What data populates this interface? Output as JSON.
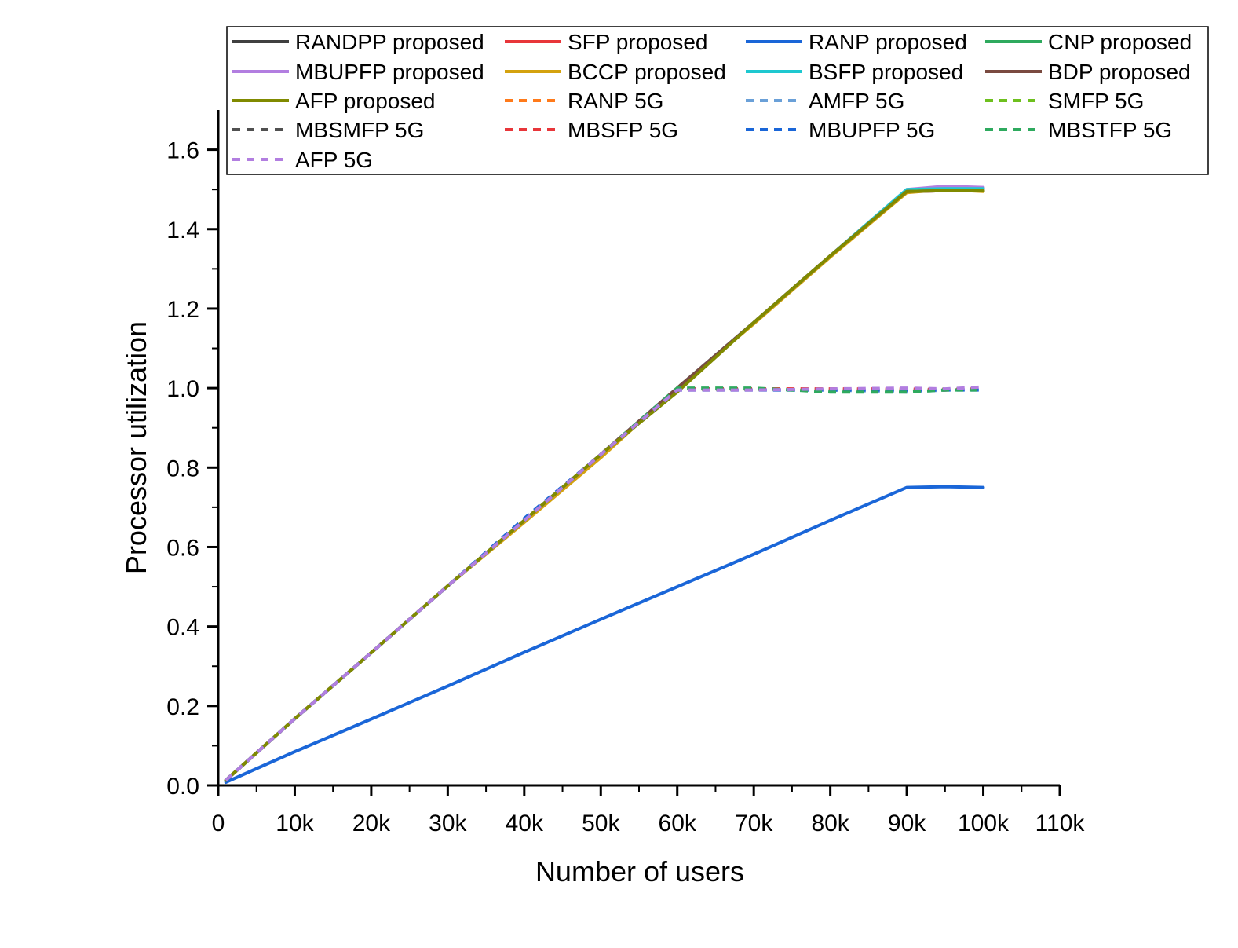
{
  "chart_data": {
    "type": "line",
    "title": "",
    "xlabel": "Number of users",
    "ylabel": "Processor utilization",
    "xlim": [
      0,
      110000
    ],
    "ylim": [
      0,
      1.7
    ],
    "x_ticks": [
      0,
      10000,
      20000,
      30000,
      40000,
      50000,
      60000,
      70000,
      80000,
      90000,
      100000,
      110000
    ],
    "x_tick_labels": [
      "0",
      "10k",
      "20k",
      "30k",
      "40k",
      "50k",
      "60k",
      "70k",
      "80k",
      "90k",
      "100k",
      "110k"
    ],
    "y_ticks": [
      0.0,
      0.2,
      0.4,
      0.6,
      0.8,
      1.0,
      1.2,
      1.4,
      1.6
    ],
    "y_tick_labels": [
      "0.0",
      "0.2",
      "0.4",
      "0.6",
      "0.8",
      "1.0",
      "1.2",
      "1.4",
      "1.6"
    ],
    "grid": false,
    "legend_position": "top-right",
    "x": [
      1000,
      10000,
      20000,
      30000,
      40000,
      50000,
      60000,
      70000,
      80000,
      90000,
      95000,
      100000
    ],
    "series": [
      {
        "name": "RANDPP proposed",
        "color": "#404040",
        "dash": "solid",
        "values": [
          0.013,
          0.168,
          0.334,
          0.502,
          0.667,
          0.833,
          1.0,
          1.165,
          1.333,
          1.495,
          1.497,
          1.497
        ]
      },
      {
        "name": "SFP proposed",
        "color": "#e8363a",
        "dash": "solid",
        "values": [
          0.013,
          0.168,
          0.334,
          0.502,
          0.667,
          0.833,
          1.0,
          1.165,
          1.333,
          1.495,
          1.497,
          1.497
        ]
      },
      {
        "name": "RANP proposed",
        "color": "#1a66d8",
        "dash": "solid",
        "values": [
          0.008,
          0.085,
          0.167,
          0.25,
          0.335,
          0.418,
          0.5,
          0.582,
          0.667,
          0.75,
          0.752,
          0.75
        ]
      },
      {
        "name": "CNP proposed",
        "color": "#2eaa5e",
        "dash": "solid",
        "values": [
          0.013,
          0.168,
          0.334,
          0.502,
          0.667,
          0.833,
          1.0,
          1.165,
          1.333,
          1.498,
          1.503,
          1.503
        ]
      },
      {
        "name": "MBUPFP proposed",
        "color": "#b27ee0",
        "dash": "solid",
        "values": [
          0.013,
          0.168,
          0.334,
          0.502,
          0.667,
          0.833,
          1.0,
          1.165,
          1.333,
          1.5,
          1.508,
          1.505
        ]
      },
      {
        "name": "BCCP proposed",
        "color": "#d4a20f",
        "dash": "solid",
        "values": [
          0.013,
          0.168,
          0.334,
          0.502,
          0.662,
          0.825,
          1.0,
          1.162,
          1.33,
          1.492,
          1.5,
          1.495
        ]
      },
      {
        "name": "BSFP proposed",
        "color": "#1ec8d0",
        "dash": "solid",
        "values": [
          0.013,
          0.168,
          0.334,
          0.502,
          0.667,
          0.833,
          1.0,
          1.165,
          1.333,
          1.5,
          1.502,
          1.502
        ]
      },
      {
        "name": "BDP proposed",
        "color": "#7a4a40",
        "dash": "solid",
        "values": [
          0.013,
          0.168,
          0.334,
          0.502,
          0.667,
          0.833,
          1.0,
          1.165,
          1.333,
          1.495,
          1.497,
          1.497
        ]
      },
      {
        "name": "AFP proposed",
        "color": "#808a00",
        "dash": "solid",
        "values": [
          0.013,
          0.168,
          0.334,
          0.502,
          0.667,
          0.833,
          0.99,
          1.165,
          1.333,
          1.495,
          1.497,
          1.497
        ]
      },
      {
        "name": "RANP 5G",
        "color": "#ff7a1a",
        "dash": "dash",
        "values": [
          0.013,
          0.168,
          0.334,
          0.502,
          0.667,
          0.833,
          0.998,
          0.998,
          0.998,
          0.995,
          0.995,
          0.998
        ]
      },
      {
        "name": "AMFP 5G",
        "color": "#6aa0d8",
        "dash": "dash",
        "values": [
          0.013,
          0.168,
          0.334,
          0.502,
          0.667,
          0.833,
          0.995,
          0.995,
          0.995,
          0.99,
          0.995,
          0.997
        ]
      },
      {
        "name": "SMFP 5G",
        "color": "#6ec01e",
        "dash": "dash",
        "values": [
          0.013,
          0.168,
          0.334,
          0.502,
          0.667,
          0.833,
          0.997,
          0.997,
          0.997,
          0.997,
          0.997,
          0.998
        ]
      },
      {
        "name": "MBSMFP 5G",
        "color": "#505050",
        "dash": "dash",
        "values": [
          0.013,
          0.168,
          0.334,
          0.502,
          0.667,
          0.833,
          0.998,
          0.998,
          0.995,
          0.995,
          0.995,
          0.998
        ]
      },
      {
        "name": "MBSFP 5G",
        "color": "#e8363a",
        "dash": "dash",
        "values": [
          0.013,
          0.168,
          0.334,
          0.502,
          0.667,
          0.833,
          0.998,
          0.998,
          0.998,
          0.998,
          0.995,
          0.998
        ]
      },
      {
        "name": "MBUPFP 5G",
        "color": "#1a66d8",
        "dash": "dash",
        "values": [
          0.013,
          0.168,
          0.334,
          0.502,
          0.672,
          0.833,
          0.995,
          0.995,
          0.995,
          0.995,
          0.995,
          0.995
        ]
      },
      {
        "name": "MBSTFP 5G",
        "color": "#2eaa5e",
        "dash": "dash",
        "values": [
          0.013,
          0.168,
          0.334,
          0.502,
          0.667,
          0.833,
          1.0,
          1.0,
          0.99,
          0.99,
          0.995,
          0.995
        ]
      },
      {
        "name": "AFP 5G",
        "color": "#b27ee0",
        "dash": "dash",
        "values": [
          0.013,
          0.168,
          0.334,
          0.502,
          0.667,
          0.833,
          0.995,
          0.995,
          0.998,
          1.0,
          0.998,
          1.003
        ]
      }
    ]
  }
}
